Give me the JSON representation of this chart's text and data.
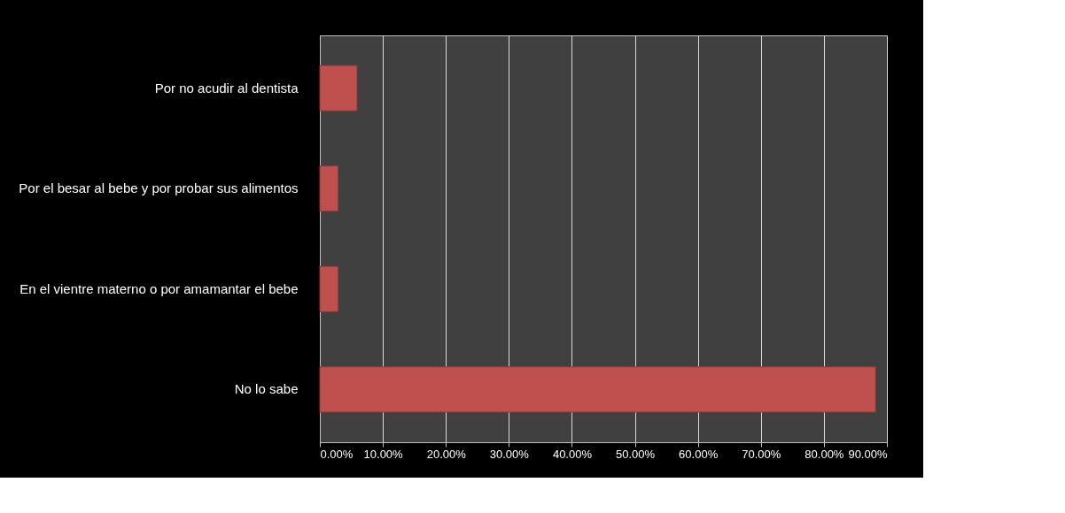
{
  "chart_data": {
    "type": "bar",
    "orientation": "horizontal",
    "categories": [
      "Por no acudir al dentista",
      "Por el besar al bebe y por probar sus alimentos",
      "En el vientre materno o por amamantar el bebe",
      "No lo sabe"
    ],
    "values": [
      5.9,
      2.9,
      2.9,
      88.2
    ],
    "color": "#c0504d",
    "xlim": [
      0,
      90
    ],
    "xticks": [
      {
        "value": 0,
        "label": "0.00%"
      },
      {
        "value": 10,
        "label": "10.00%"
      },
      {
        "value": 20,
        "label": "20.00%"
      },
      {
        "value": 30,
        "label": "30.00%"
      },
      {
        "value": 40,
        "label": "40.00%"
      },
      {
        "value": 50,
        "label": "50.00%"
      },
      {
        "value": 60,
        "label": "60.00%"
      },
      {
        "value": 70,
        "label": "70.00%"
      },
      {
        "value": 80,
        "label": "80.00%"
      },
      {
        "value": 90,
        "label": "90.00%"
      }
    ],
    "grid": "x"
  }
}
